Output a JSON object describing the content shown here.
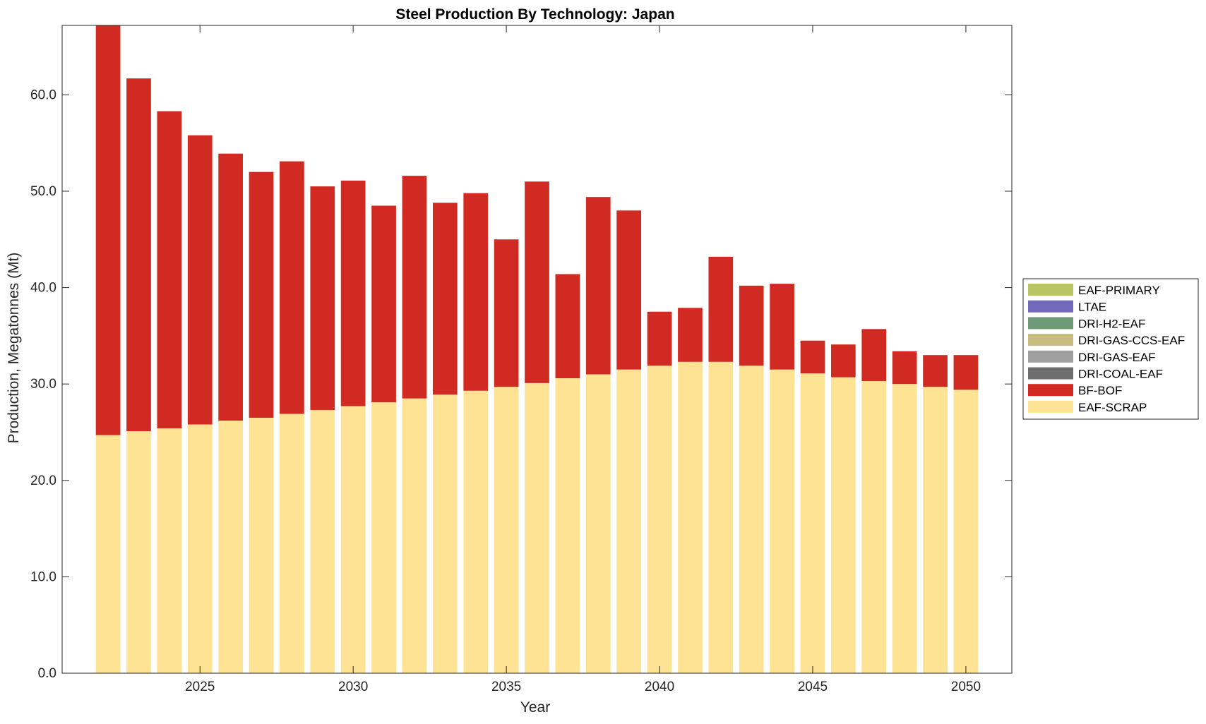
{
  "chart_data": {
    "type": "bar",
    "stacked": true,
    "title": "Steel Production By Technology: Japan",
    "xlabel": "Year",
    "ylabel": "Production, Megatonnes (Mt)",
    "x": [
      2022,
      2023,
      2024,
      2025,
      2026,
      2027,
      2028,
      2029,
      2030,
      2031,
      2032,
      2033,
      2034,
      2035,
      2036,
      2037,
      2038,
      2039,
      2040,
      2041,
      2042,
      2043,
      2044,
      2045,
      2046,
      2047,
      2048,
      2049,
      2050
    ],
    "xticks": [
      2025,
      2030,
      2035,
      2040,
      2045,
      2050
    ],
    "xlim": [
      2020.5,
      2051.5
    ],
    "ylim": [
      0,
      67.2
    ],
    "yticks": [
      0,
      10,
      20,
      30,
      40,
      50,
      60
    ],
    "ytick_labels": [
      "0.0",
      "10.0",
      "20.0",
      "30.0",
      "40.0",
      "50.0",
      "60.0"
    ],
    "grid": false,
    "legend_position": "outside-right",
    "series": [
      {
        "name": "EAF-SCRAP",
        "color": "#FDE393",
        "values": [
          24.7,
          25.1,
          25.4,
          25.8,
          26.2,
          26.5,
          26.9,
          27.3,
          27.7,
          28.1,
          28.5,
          28.9,
          29.3,
          29.7,
          30.1,
          30.6,
          31.0,
          31.5,
          31.9,
          32.3,
          32.3,
          31.9,
          31.5,
          31.1,
          30.7,
          30.3,
          30.0,
          29.7,
          29.4
        ]
      },
      {
        "name": "BF-BOF",
        "color": "#D12A23",
        "values": [
          42.5,
          36.6,
          32.9,
          30.0,
          27.7,
          25.5,
          26.2,
          23.2,
          23.4,
          20.4,
          23.1,
          19.9,
          20.5,
          15.3,
          20.9,
          10.8,
          18.4,
          16.5,
          5.6,
          5.6,
          10.9,
          8.3,
          8.9,
          3.4,
          3.4,
          5.4,
          3.4,
          3.3,
          3.6
        ]
      },
      {
        "name": "DRI-COAL-EAF",
        "color": "#6E6E6E",
        "values": [
          0,
          0,
          0,
          0,
          0,
          0,
          0,
          0,
          0,
          0,
          0,
          0,
          0,
          0,
          0,
          0,
          0,
          0,
          0,
          0,
          0,
          0,
          0,
          0,
          0,
          0,
          0,
          0,
          0
        ]
      },
      {
        "name": "DRI-GAS-EAF",
        "color": "#A0A0A0",
        "values": [
          0,
          0,
          0,
          0,
          0,
          0,
          0,
          0,
          0,
          0,
          0,
          0,
          0,
          0,
          0,
          0,
          0,
          0,
          0,
          0,
          0,
          0,
          0,
          0,
          0,
          0,
          0,
          0,
          0
        ]
      },
      {
        "name": "DRI-GAS-CCS-EAF",
        "color": "#C8BD7E",
        "values": [
          0,
          0,
          0,
          0,
          0,
          0,
          0,
          0,
          0,
          0,
          0,
          0,
          0,
          0,
          0,
          0,
          0,
          0,
          0,
          0,
          0,
          0,
          0,
          0,
          0,
          0,
          0,
          0,
          0
        ]
      },
      {
        "name": "DRI-H2-EAF",
        "color": "#6E9A78",
        "values": [
          0,
          0,
          0,
          0,
          0,
          0,
          0,
          0,
          0,
          0,
          0,
          0,
          0,
          0,
          0,
          0,
          0,
          0,
          0,
          0,
          0,
          0,
          0,
          0,
          0,
          0,
          0,
          0,
          0
        ]
      },
      {
        "name": "LTAE",
        "color": "#7468BC",
        "values": [
          0,
          0,
          0,
          0,
          0,
          0,
          0,
          0,
          0,
          0,
          0,
          0,
          0,
          0,
          0,
          0,
          0,
          0,
          0,
          0,
          0,
          0,
          0,
          0,
          0,
          0,
          0,
          0,
          0
        ]
      },
      {
        "name": "EAF-PRIMARY",
        "color": "#B8C564",
        "values": [
          0,
          0,
          0,
          0,
          0,
          0,
          0,
          0,
          0,
          0,
          0,
          0,
          0,
          0,
          0,
          0,
          0,
          0,
          0,
          0,
          0,
          0,
          0,
          0,
          0,
          0,
          0,
          0,
          0
        ]
      }
    ],
    "legend_order": [
      "EAF-PRIMARY",
      "LTAE",
      "DRI-H2-EAF",
      "DRI-GAS-CCS-EAF",
      "DRI-GAS-EAF",
      "DRI-COAL-EAF",
      "BF-BOF",
      "EAF-SCRAP"
    ]
  }
}
